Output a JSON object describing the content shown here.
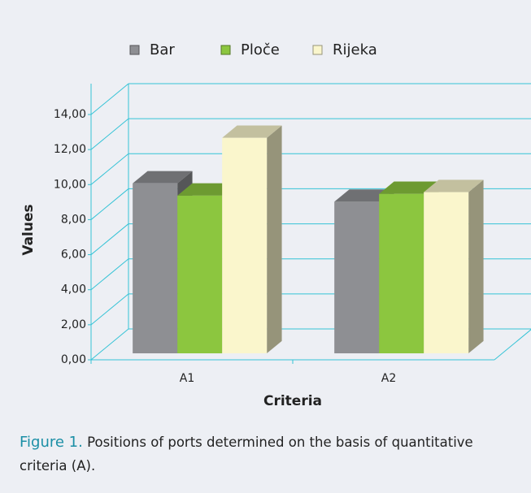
{
  "chart_data": {
    "type": "bar3d",
    "categories": [
      "A1",
      "A2"
    ],
    "series": [
      {
        "name": "Bar",
        "color": "#8e8f93",
        "values": [
          9.7,
          8.65
        ]
      },
      {
        "name": "Ploče",
        "color": "#8cc63f",
        "values": [
          9.0,
          9.1
        ]
      },
      {
        "name": "Rijeka",
        "color": "#faf6cc",
        "values": [
          12.3,
          9.2
        ]
      }
    ],
    "ylim": [
      0,
      14
    ],
    "yticks": [
      {
        "value": 0,
        "label": "0,00"
      },
      {
        "value": 2,
        "label": "2,00"
      },
      {
        "value": 4,
        "label": "4,00"
      },
      {
        "value": 6,
        "label": "6,00"
      },
      {
        "value": 8,
        "label": "8,00"
      },
      {
        "value": 10,
        "label": "10,00"
      },
      {
        "value": 12,
        "label": "12,00"
      },
      {
        "value": 14,
        "label": "14,00"
      }
    ],
    "y_label": "Values",
    "x_label": "Criteria",
    "grid": true,
    "legend": "top"
  },
  "caption": {
    "label": "Figure 1.",
    "text": "Positions of ports determined on the basis of quantitative criteria (A)."
  }
}
